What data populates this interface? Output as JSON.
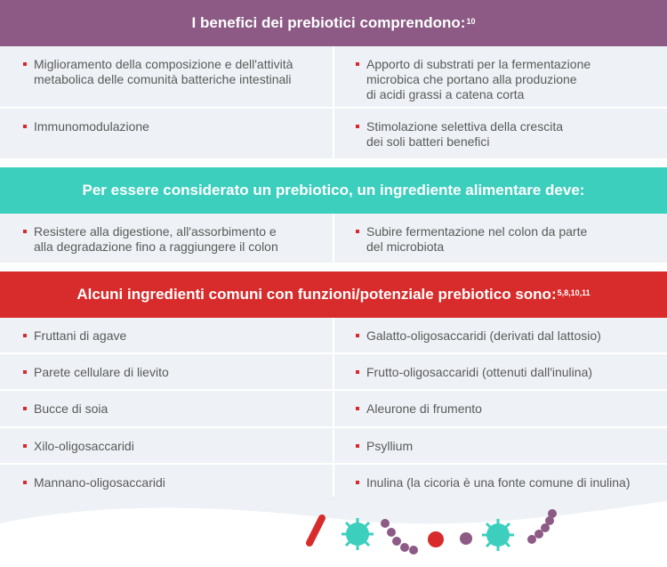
{
  "sections": [
    {
      "title": "I benefici dei prebiotici comprendono:",
      "note": "10",
      "color": "#8c5a85",
      "rows": [
        [
          [
            "Miglioramento della composizione e dell'attività",
            "metabolica delle comunità batteriche intestinali"
          ],
          [
            "Apporto di substrati per la fermentazione",
            "microbica che portano alla produzione",
            "di acidi grassi a catena corta"
          ]
        ],
        [
          [
            "Immunomodulazione"
          ],
          [
            "Stimolazione selettiva della crescita",
            "dei soli batteri benefici"
          ]
        ]
      ]
    },
    {
      "title": "Per essere considerato un prebiotico, un ingrediente alimentare deve:",
      "color": "#3ccfbe",
      "rows": [
        [
          [
            "Resistere alla digestione, all'assorbimento e",
            "alla degradazione fino a raggiungere il colon"
          ],
          [
            "Subire fermentazione nel colon da parte",
            "del microbiota"
          ]
        ]
      ]
    },
    {
      "title": "Alcuni ingredienti comuni con funzioni/potenziale prebiotico sono:",
      "note": "5,8,10,11",
      "color": "#d82b2b",
      "rows": [
        [
          [
            "Fruttani di agave"
          ],
          [
            "Galatto-oligosaccaridi (derivati dal lattosio)"
          ]
        ],
        [
          [
            "Parete cellulare di lievito"
          ],
          [
            "Frutto-oligosaccaridi (ottenuti dall'inulina)"
          ]
        ],
        [
          [
            "Bucce di soia"
          ],
          [
            "Aleurone di frumento"
          ]
        ],
        [
          [
            "Xilo-oligosaccaridi"
          ],
          [
            "Psyllium"
          ]
        ],
        [
          [
            "Mannano-oligosaccaridi"
          ],
          [
            "Inulina (la cicoria è una fonte comune di inulina)"
          ]
        ]
      ]
    }
  ]
}
